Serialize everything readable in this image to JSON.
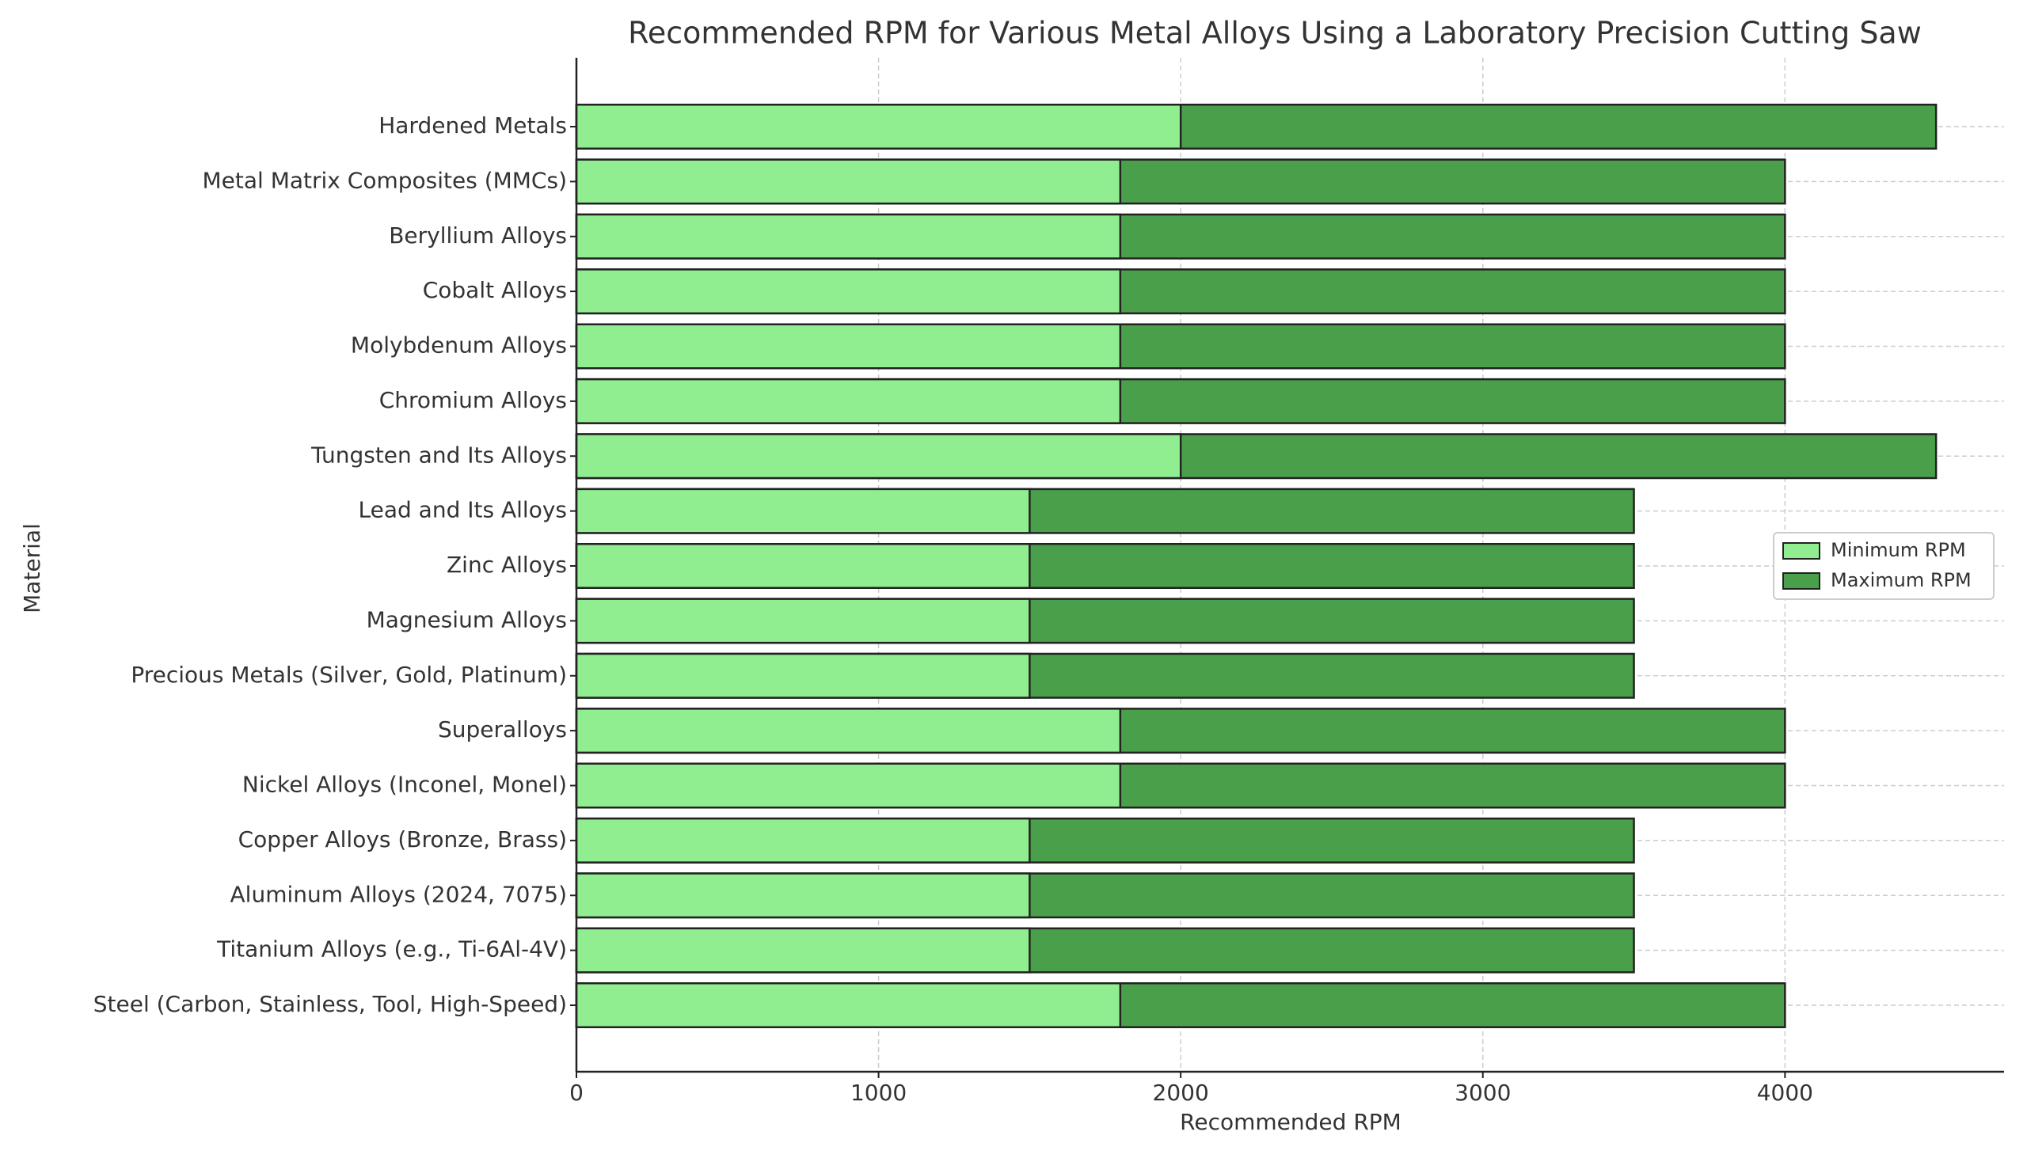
{
  "chart_data": {
    "type": "bar",
    "orientation": "horizontal",
    "title": "Recommended RPM for Various Metal Alloys Using a Laboratory Precision Cutting Saw",
    "xlabel": "Recommended RPM",
    "ylabel": "Material",
    "categories": [
      "Steel (Carbon, Stainless, Tool, High-Speed)",
      "Titanium Alloys (e.g., Ti-6Al-4V)",
      "Aluminum Alloys (2024, 7075)",
      "Copper Alloys (Bronze, Brass)",
      "Nickel Alloys (Inconel, Monel)",
      "Superalloys",
      "Precious Metals (Silver, Gold, Platinum)",
      "Magnesium Alloys",
      "Zinc Alloys",
      "Lead and Its Alloys",
      "Tungsten and Its Alloys",
      "Chromium Alloys",
      "Molybdenum Alloys",
      "Cobalt Alloys",
      "Beryllium Alloys",
      "Metal Matrix Composites (MMCs)",
      "Hardened Metals"
    ],
    "series": [
      {
        "name": "Maximum RPM",
        "color": "#4aa04a",
        "values": [
          4000,
          3500,
          3500,
          3500,
          4000,
          4000,
          3500,
          3500,
          3500,
          3500,
          4500,
          4000,
          4000,
          4000,
          4000,
          4000,
          4500
        ]
      },
      {
        "name": "Minimum RPM",
        "color": "#90ee90",
        "values": [
          1800,
          1500,
          1500,
          1500,
          1800,
          1800,
          1500,
          1500,
          1500,
          1500,
          2000,
          1800,
          1800,
          1800,
          1800,
          1800,
          2000
        ]
      }
    ],
    "xlim": [
      0,
      4725
    ],
    "xticks": [
      0,
      1000,
      2000,
      3000,
      4000
    ],
    "grid": true,
    "legend": "right"
  }
}
